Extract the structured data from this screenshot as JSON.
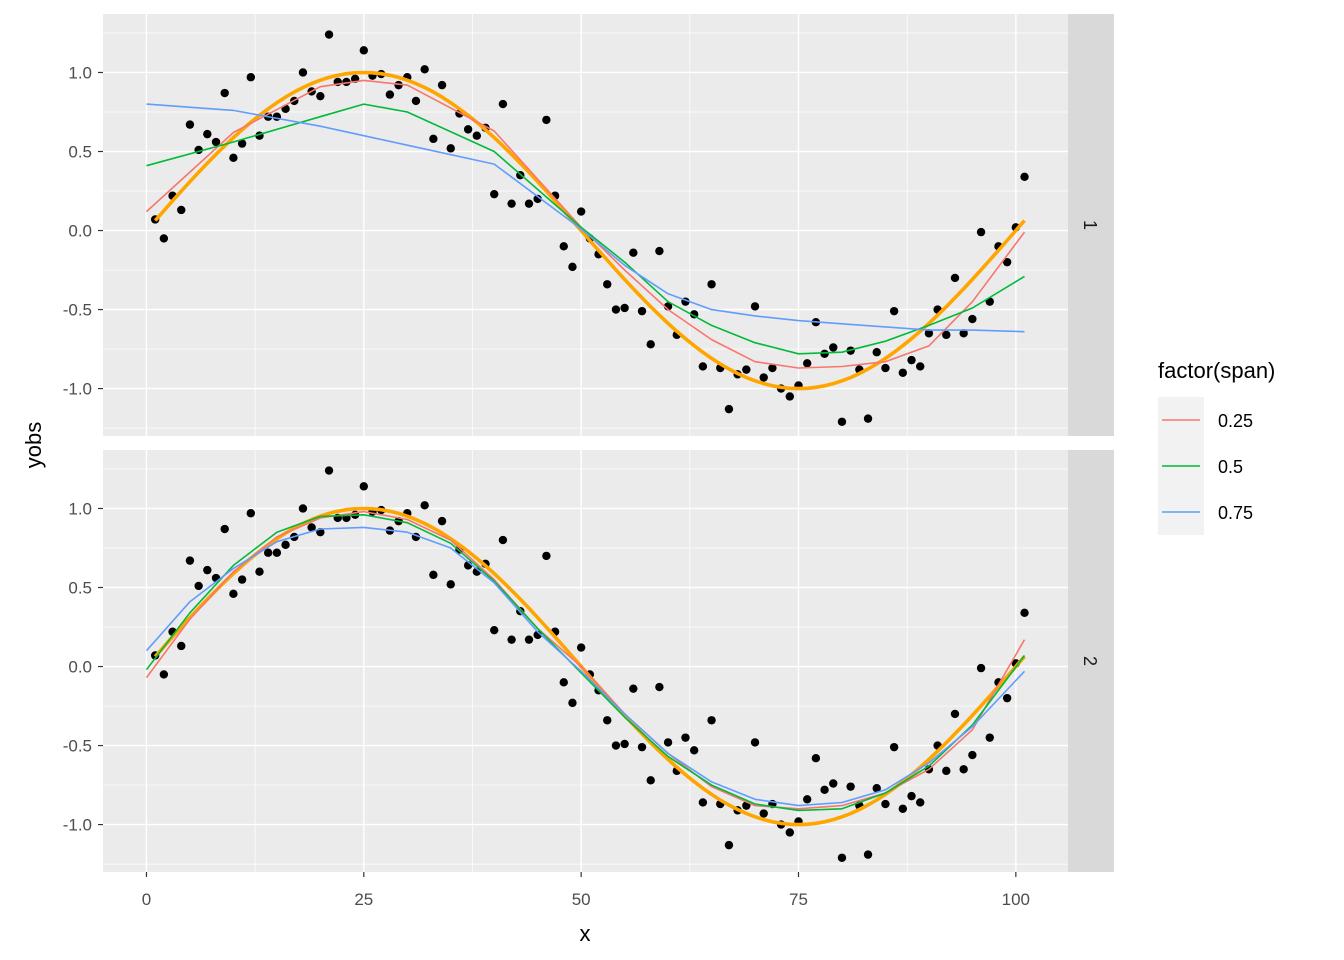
{
  "chart_data": {
    "type": "scatter",
    "xlabel": "x",
    "ylabel": "yobs",
    "xlim": [
      -5,
      106
    ],
    "ylim": [
      -1.3,
      1.37
    ],
    "x_ticks": [
      0,
      25,
      50,
      75,
      100
    ],
    "x_tick_labels": [
      "0",
      "25",
      "50",
      "75",
      "100"
    ],
    "y_ticks": [
      -1.0,
      -0.5,
      0.0,
      0.5,
      1.0
    ],
    "y_tick_labels": [
      "-1.0",
      "-0.5",
      "0.0",
      "0.5",
      "1.0"
    ],
    "grid": true,
    "facet_labels": [
      "1",
      "2"
    ],
    "legend": {
      "title": "factor(span)",
      "position": "right",
      "entries": [
        {
          "label": "0.25",
          "color": "#F8766D"
        },
        {
          "label": "0.5",
          "color": "#00BA38"
        },
        {
          "label": "0.75",
          "color": "#619CFF"
        }
      ]
    },
    "true_curve_color": "#FFA500",
    "point_color": "#000000",
    "points": {
      "x": [
        1,
        2,
        3,
        4,
        5,
        6,
        7,
        8,
        9,
        10,
        11,
        12,
        13,
        14,
        15,
        16,
        17,
        18,
        19,
        20,
        21,
        22,
        23,
        24,
        25,
        26,
        27,
        28,
        29,
        30,
        31,
        32,
        33,
        34,
        35,
        36,
        37,
        38,
        39,
        40,
        41,
        42,
        43,
        44,
        45,
        46,
        47,
        48,
        49,
        50,
        51,
        52,
        53,
        54,
        55,
        56,
        57,
        58,
        59,
        60,
        61,
        62,
        63,
        64,
        65,
        66,
        67,
        68,
        69,
        70,
        71,
        72,
        73,
        74,
        75,
        76,
        77,
        78,
        79,
        80,
        81,
        82,
        83,
        84,
        85,
        86,
        87,
        88,
        89,
        90,
        91,
        92,
        93,
        94,
        95,
        96,
        97,
        98,
        99,
        100,
        101
      ],
      "y": [
        0.07,
        -0.05,
        0.22,
        0.13,
        0.67,
        0.51,
        0.61,
        0.56,
        0.87,
        0.46,
        0.55,
        0.97,
        0.6,
        0.72,
        0.72,
        0.77,
        0.82,
        1.0,
        0.88,
        0.85,
        1.24,
        0.94,
        0.94,
        0.96,
        1.14,
        0.98,
        0.99,
        0.86,
        0.92,
        0.97,
        0.82,
        1.02,
        0.58,
        0.92,
        0.52,
        0.74,
        0.64,
        0.6,
        0.65,
        0.23,
        0.8,
        0.17,
        0.35,
        0.17,
        0.2,
        0.7,
        0.22,
        -0.1,
        -0.23,
        0.12,
        -0.05,
        -0.15,
        -0.34,
        -0.5,
        -0.49,
        -0.14,
        -0.51,
        -0.72,
        -0.13,
        -0.48,
        -0.66,
        -0.45,
        -0.53,
        -0.86,
        -0.34,
        -0.87,
        -1.13,
        -0.91,
        -0.88,
        -0.48,
        -0.93,
        -0.87,
        -1.0,
        -1.05,
        -0.98,
        -0.84,
        -0.58,
        -0.78,
        -0.74,
        -1.21,
        -0.76,
        -0.88,
        -1.19,
        -0.77,
        -0.87,
        -0.51,
        -0.9,
        -0.82,
        -0.86,
        -0.65,
        -0.5,
        -0.66,
        -0.3,
        -0.65,
        -0.56,
        -0.01,
        -0.45,
        -0.1,
        -0.2,
        0.02,
        0.34
      ]
    },
    "series": [
      {
        "facet": "1",
        "name": "0.25",
        "x": [
          0,
          10,
          20,
          25,
          30,
          40,
          50,
          55,
          60,
          65,
          70,
          75,
          80,
          85,
          90,
          95,
          101
        ],
        "y": [
          0.12,
          0.62,
          0.91,
          0.95,
          0.92,
          0.63,
          0.02,
          -0.25,
          -0.5,
          -0.69,
          -0.83,
          -0.87,
          -0.86,
          -0.83,
          -0.73,
          -0.45,
          -0.01
        ]
      },
      {
        "facet": "1",
        "name": "0.5",
        "x": [
          0,
          10,
          20,
          25,
          30,
          40,
          50,
          55,
          60,
          65,
          70,
          75,
          80,
          85,
          90,
          95,
          101
        ],
        "y": [
          0.41,
          0.56,
          0.72,
          0.8,
          0.75,
          0.5,
          0.02,
          -0.2,
          -0.45,
          -0.6,
          -0.71,
          -0.78,
          -0.77,
          -0.7,
          -0.6,
          -0.49,
          -0.29
        ]
      },
      {
        "facet": "1",
        "name": "0.75",
        "x": [
          0,
          10,
          20,
          25,
          30,
          40,
          50,
          55,
          60,
          65,
          70,
          75,
          80,
          85,
          90,
          95,
          101
        ],
        "y": [
          0.8,
          0.76,
          0.66,
          0.6,
          0.54,
          0.42,
          0.01,
          -0.22,
          -0.4,
          -0.5,
          -0.54,
          -0.57,
          -0.59,
          -0.61,
          -0.63,
          -0.63,
          -0.64
        ]
      },
      {
        "facet": "2",
        "name": "0.25",
        "x": [
          0,
          5,
          10,
          15,
          20,
          25,
          30,
          35,
          40,
          45,
          50,
          55,
          60,
          65,
          70,
          75,
          80,
          85,
          90,
          95,
          101
        ],
        "y": [
          -0.07,
          0.3,
          0.6,
          0.82,
          0.94,
          0.98,
          0.93,
          0.8,
          0.55,
          0.24,
          0.0,
          -0.3,
          -0.55,
          -0.76,
          -0.88,
          -0.9,
          -0.88,
          -0.8,
          -0.65,
          -0.4,
          0.17
        ]
      },
      {
        "facet": "2",
        "name": "0.5",
        "x": [
          0,
          5,
          10,
          15,
          20,
          25,
          30,
          35,
          40,
          45,
          50,
          55,
          60,
          65,
          70,
          75,
          80,
          85,
          90,
          95,
          101
        ],
        "y": [
          -0.02,
          0.34,
          0.64,
          0.85,
          0.95,
          0.96,
          0.91,
          0.78,
          0.54,
          0.24,
          -0.04,
          -0.32,
          -0.57,
          -0.75,
          -0.87,
          -0.91,
          -0.9,
          -0.8,
          -0.63,
          -0.37,
          0.07
        ]
      },
      {
        "facet": "2",
        "name": "0.75",
        "x": [
          0,
          5,
          10,
          15,
          20,
          25,
          30,
          35,
          40,
          45,
          50,
          55,
          60,
          65,
          70,
          75,
          80,
          85,
          90,
          95,
          101
        ],
        "y": [
          0.1,
          0.41,
          0.62,
          0.79,
          0.87,
          0.88,
          0.85,
          0.75,
          0.53,
          0.22,
          -0.03,
          -0.3,
          -0.55,
          -0.73,
          -0.84,
          -0.88,
          -0.86,
          -0.78,
          -0.61,
          -0.38,
          -0.03
        ]
      }
    ]
  }
}
